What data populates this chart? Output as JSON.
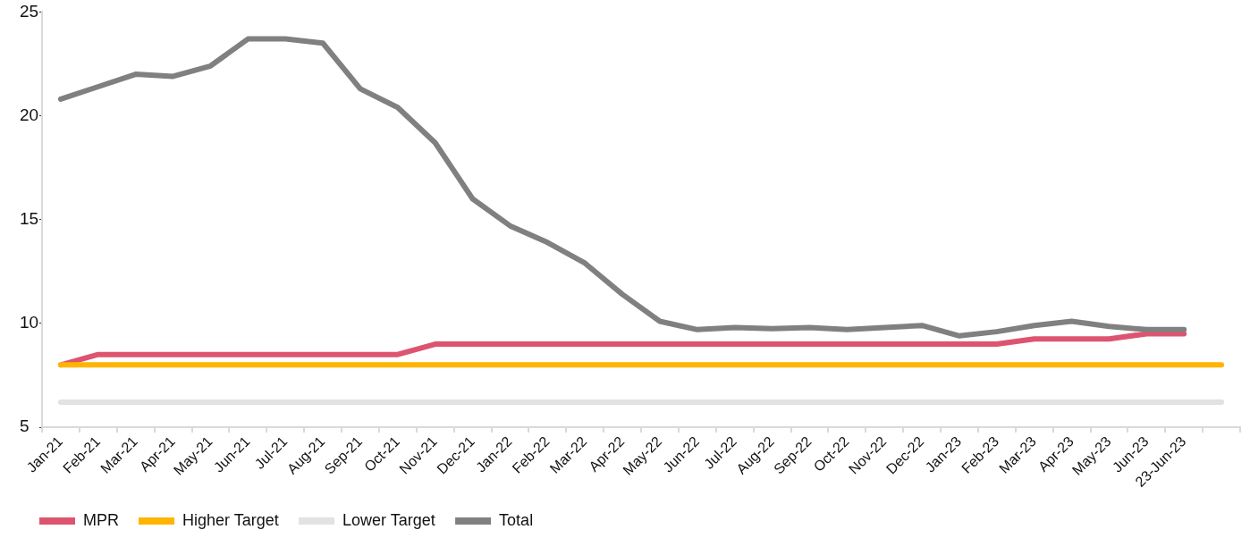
{
  "chart_data": {
    "type": "line",
    "categories": [
      "Jan-21",
      "Feb-21",
      "Mar-21",
      "Apr-21",
      "May-21",
      "Jun-21",
      "Jul-21",
      "Aug-21",
      "Sep-21",
      "Oct-21",
      "Nov-21",
      "Dec-21",
      "Jan-22",
      "Feb-22",
      "Mar-22",
      "Apr-22",
      "May-22",
      "Jun-22",
      "Jul-22",
      "Aug-22",
      "Sep-22",
      "Oct-22",
      "Nov-22",
      "Dec-22",
      "Jan-23",
      "Feb-23",
      "Mar-23",
      "Apr-23",
      "May-23",
      "Jun-23",
      "23-Jun-23",
      null
    ],
    "series": [
      {
        "name": "MPR",
        "color": "#dd5470",
        "values": [
          8,
          8.5,
          8.5,
          8.5,
          8.5,
          8.5,
          8.5,
          8.5,
          8.5,
          8.5,
          9,
          9,
          9,
          9,
          9,
          9,
          9,
          9,
          9,
          9,
          9,
          9,
          9,
          9,
          9,
          9,
          9.25,
          9.25,
          9.25,
          9.5,
          9.5,
          null
        ]
      },
      {
        "name": "Higher Target",
        "color": "#ffb400",
        "values": [
          8,
          8,
          8,
          8,
          8,
          8,
          8,
          8,
          8,
          8,
          8,
          8,
          8,
          8,
          8,
          8,
          8,
          8,
          8,
          8,
          8,
          8,
          8,
          8,
          8,
          8,
          8,
          8,
          8,
          8,
          8,
          8
        ]
      },
      {
        "name": "Lower Target",
        "color": "#e2e2e4",
        "values": [
          6.2,
          6.2,
          6.2,
          6.2,
          6.2,
          6.2,
          6.2,
          6.2,
          6.2,
          6.2,
          6.2,
          6.2,
          6.2,
          6.2,
          6.2,
          6.2,
          6.2,
          6.2,
          6.2,
          6.2,
          6.2,
          6.2,
          6.2,
          6.2,
          6.2,
          6.2,
          6.2,
          6.2,
          6.2,
          6.2,
          6.2,
          6.2
        ]
      },
      {
        "name": "Total",
        "color": "#808080",
        "values": [
          20.8,
          21.4,
          22.0,
          21.9,
          22.4,
          23.7,
          23.7,
          23.5,
          21.3,
          20.4,
          18.7,
          16.0,
          14.7,
          13.9,
          12.9,
          11.4,
          10.1,
          9.7,
          9.8,
          9.75,
          9.8,
          9.7,
          9.8,
          9.9,
          9.4,
          9.6,
          9.9,
          10.1,
          9.85,
          9.7,
          9.7,
          null
        ]
      }
    ],
    "ylim": [
      5,
      25
    ],
    "yticks": [
      5,
      10,
      15,
      20,
      25
    ],
    "legend": "bottom left",
    "marker": "none"
  }
}
